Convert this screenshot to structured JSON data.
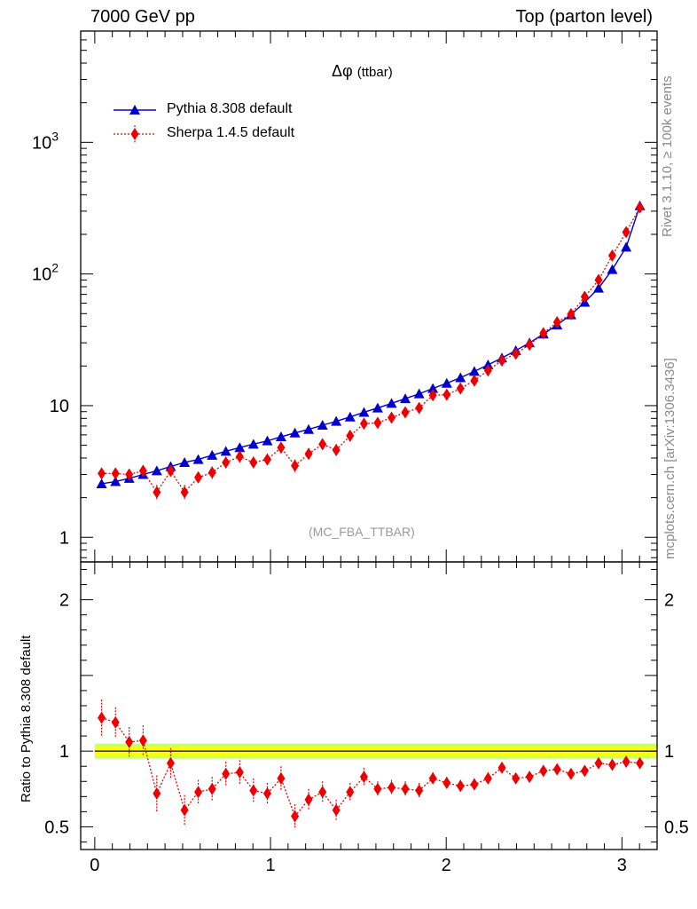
{
  "header": {
    "left": "7000 GeV pp",
    "right": "Top (parton level)"
  },
  "side_labels": {
    "rivet": "Rivet 3.1.10, ≥ 100k events",
    "mcplots": "mcplots.cern.ch [arXiv:1306.3436]"
  },
  "colors": {
    "pythia": "#0000cc",
    "sherpa": "#ee0000",
    "band_outer": "#ccff66",
    "band_inner": "#ffff00"
  },
  "chart_data": [
    {
      "type": "line",
      "title_symbol": "Δφ",
      "title_sub": "(ttbar)",
      "analysis_label": "(MC_FBA_TTBAR)",
      "xlim": [
        -0.08,
        3.2
      ],
      "ylim": [
        0.65,
        7000
      ],
      "yscale": "log",
      "yticks": [
        {
          "v": 1,
          "label": "1"
        },
        {
          "v": 10,
          "label": "10"
        },
        {
          "v": 100,
          "label": "10",
          "sup": "2"
        },
        {
          "v": 1000,
          "label": "10",
          "sup": "3"
        }
      ],
      "x": [
        0.039,
        0.118,
        0.196,
        0.275,
        0.353,
        0.432,
        0.511,
        0.589,
        0.668,
        0.746,
        0.825,
        0.903,
        0.982,
        1.06,
        1.139,
        1.217,
        1.296,
        1.374,
        1.453,
        1.532,
        1.61,
        1.689,
        1.767,
        1.846,
        1.924,
        2.003,
        2.081,
        2.16,
        2.238,
        2.317,
        2.396,
        2.474,
        2.553,
        2.631,
        2.71,
        2.788,
        2.867,
        2.945,
        3.024,
        3.102
      ],
      "series": [
        {
          "name": "Pythia 8.308 default",
          "marker": "triangle",
          "values": [
            2.55,
            2.65,
            2.8,
            3.0,
            3.2,
            3.45,
            3.7,
            3.9,
            4.2,
            4.5,
            4.8,
            5.1,
            5.4,
            5.8,
            6.2,
            6.6,
            7.1,
            7.6,
            8.2,
            8.9,
            9.6,
            10.4,
            11.3,
            12.3,
            13.5,
            14.8,
            16.3,
            18.2,
            20.4,
            23.0,
            26.2,
            30.0,
            35.0,
            41.0,
            49.0,
            61.0,
            78.0,
            108.0,
            160.0,
            330.0
          ]
        },
        {
          "name": "Sherpa 1.4.5 default",
          "marker": "diamond",
          "values": [
            3.05,
            3.05,
            3.0,
            3.2,
            2.2,
            3.2,
            2.2,
            2.85,
            3.1,
            3.7,
            4.1,
            3.7,
            3.9,
            4.8,
            3.5,
            4.3,
            5.1,
            4.6,
            5.9,
            7.3,
            7.4,
            8.1,
            8.9,
            9.6,
            12.0,
            12.1,
            13.5,
            15.5,
            18.5,
            22.0,
            24.8,
            29.0,
            35.5,
            43.0,
            49.5,
            67.0,
            90.0,
            138.0,
            208.0,
            320.0
          ],
          "errors": [
            0.3,
            0.3,
            0.3,
            0.3,
            0.3,
            0.3,
            0.3,
            0.3,
            0.35,
            0.35,
            0.4,
            0.4,
            0.4,
            0.45,
            0.4,
            0.45,
            0.5,
            0.5,
            0.55,
            0.6,
            0.6,
            0.7,
            0.7,
            0.8,
            0.9,
            0.9,
            1.0,
            1.2,
            1.4,
            1.6,
            1.8,
            2.0,
            2.5,
            3.0,
            3.5,
            4.5,
            6.0,
            9.0,
            13.0,
            20.0
          ]
        }
      ]
    },
    {
      "type": "line",
      "ylabel": "Ratio to Pythia 8.308 default",
      "xlim": [
        -0.08,
        3.2
      ],
      "ylim": [
        0.35,
        2.25
      ],
      "yticks": [
        {
          "v": 0.5,
          "label": "0.5"
        },
        {
          "v": 1,
          "label": "1"
        },
        {
          "v": 2,
          "label": "2"
        }
      ],
      "xticks": [
        {
          "v": 0,
          "label": "0"
        },
        {
          "v": 1,
          "label": "1"
        },
        {
          "v": 2,
          "label": "2"
        },
        {
          "v": 3,
          "label": "3"
        }
      ],
      "reference": 1.0,
      "band": [
        0.97,
        1.03
      ],
      "series": [
        {
          "name": "Sherpa 1.4.5 default",
          "values": [
            1.22,
            1.19,
            1.06,
            1.07,
            0.72,
            0.92,
            0.61,
            0.73,
            0.75,
            0.85,
            0.86,
            0.74,
            0.72,
            0.82,
            0.57,
            0.68,
            0.73,
            0.61,
            0.73,
            0.83,
            0.75,
            0.76,
            0.75,
            0.74,
            0.82,
            0.79,
            0.77,
            0.78,
            0.82,
            0.89,
            0.82,
            0.83,
            0.87,
            0.88,
            0.85,
            0.87,
            0.92,
            0.91,
            0.93,
            0.92
          ],
          "errors": [
            0.12,
            0.1,
            0.1,
            0.1,
            0.12,
            0.1,
            0.1,
            0.08,
            0.08,
            0.08,
            0.08,
            0.08,
            0.07,
            0.08,
            0.08,
            0.07,
            0.07,
            0.07,
            0.06,
            0.06,
            0.05,
            0.05,
            0.05,
            0.05,
            0.04,
            0.04,
            0.04,
            0.04,
            0.04,
            0.03,
            0.03,
            0.03,
            0.03,
            0.03,
            0.02,
            0.02,
            0.02,
            0.02,
            0.02,
            0.02
          ]
        }
      ]
    }
  ]
}
